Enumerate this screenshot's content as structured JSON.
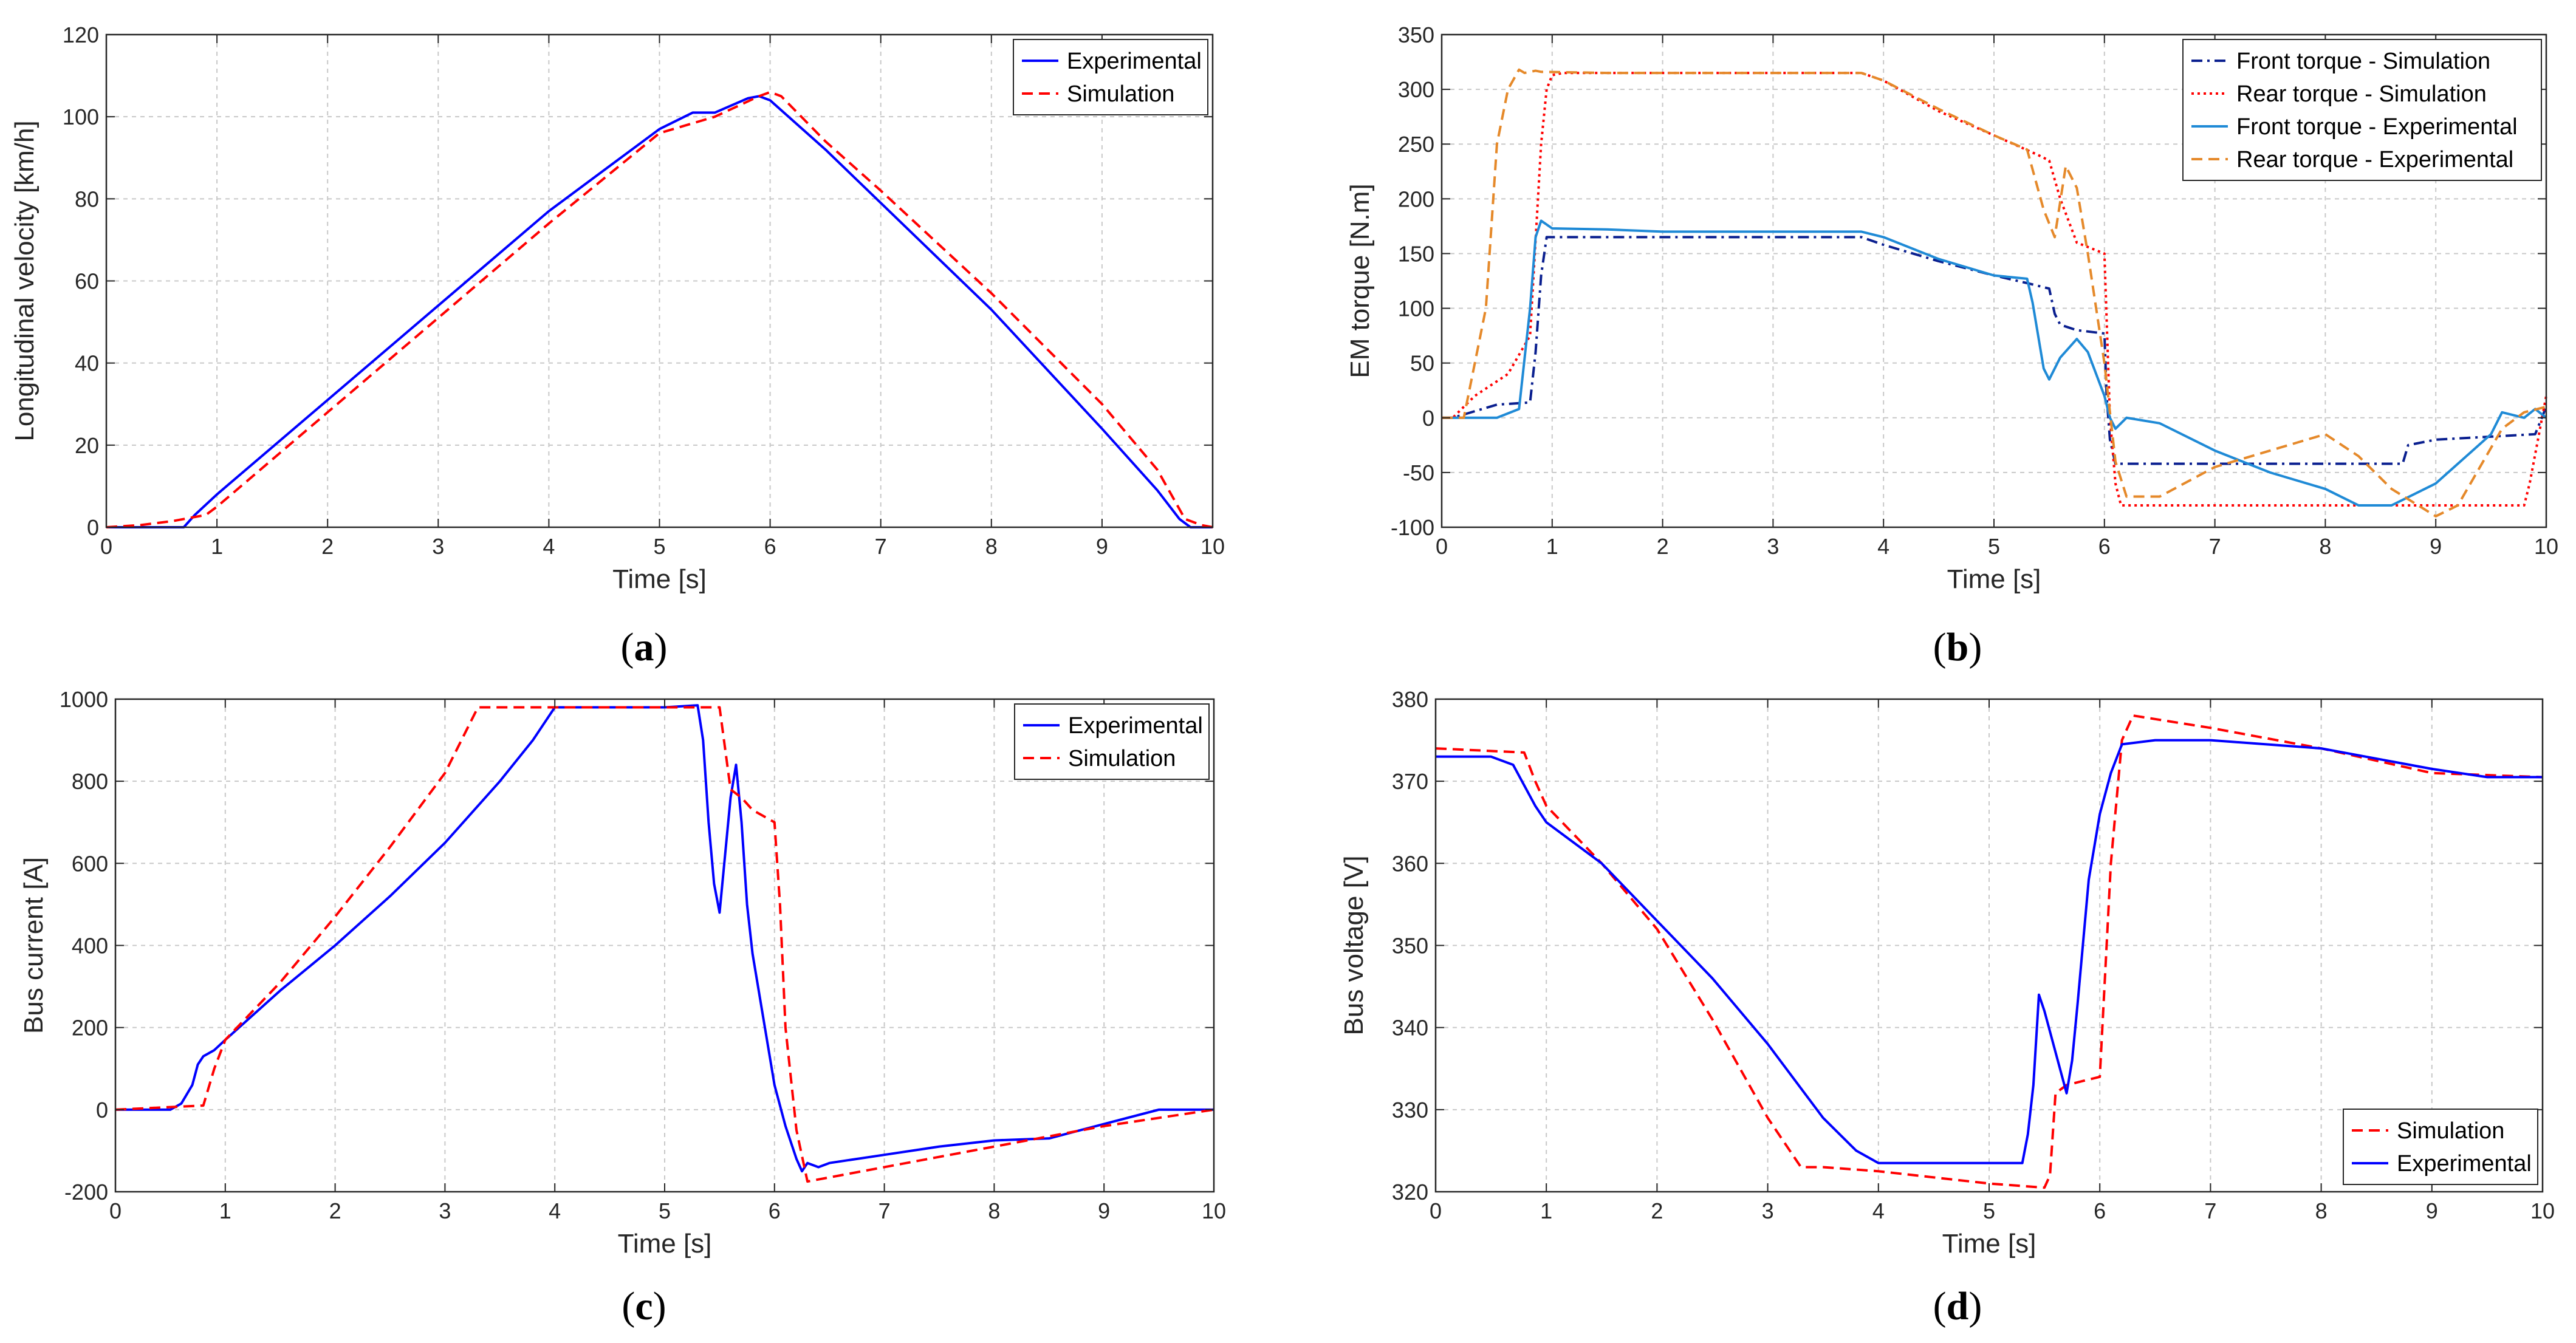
{
  "chart_data": [
    {
      "id": "a",
      "type": "line",
      "caption": "(a)",
      "xlabel": "Time [s]",
      "ylabel": "Longitudinal velocity [km/h]",
      "xlim": [
        0,
        10
      ],
      "ylim": [
        0,
        120
      ],
      "xticks": [
        0,
        1,
        2,
        3,
        4,
        5,
        6,
        7,
        8,
        9,
        10
      ],
      "yticks": [
        0,
        20,
        40,
        60,
        80,
        100,
        120
      ],
      "grid": true,
      "legend_position": "top-right",
      "series": [
        {
          "name": "Experimental",
          "color": "#0000ff",
          "style": "solid",
          "x": [
            0,
            0.7,
            0.75,
            0.8,
            1,
            2,
            3,
            4,
            5,
            5.3,
            5.5,
            5.8,
            5.9,
            6.0,
            6.5,
            7,
            8,
            9,
            9.5,
            9.7,
            9.8,
            10
          ],
          "y": [
            0,
            0,
            1.5,
            3,
            8,
            31,
            54,
            77,
            97,
            101,
            101,
            104.5,
            105,
            104,
            92,
            79,
            53,
            24,
            9,
            2,
            0,
            0
          ]
        },
        {
          "name": "Simulation",
          "color": "#ff0000",
          "style": "dashed",
          "x": [
            0,
            0.3,
            0.6,
            0.9,
            1,
            2,
            3,
            4,
            5,
            5.5,
            5.9,
            6.0,
            6.1,
            6.5,
            7,
            8,
            9,
            9.5,
            9.75,
            9.9,
            10
          ],
          "y": [
            0,
            0.5,
            1.5,
            3,
            5,
            28,
            51,
            74,
            96,
            100,
            105,
            106,
            105,
            94,
            82,
            57,
            30,
            14,
            2,
            0.5,
            0
          ]
        }
      ]
    },
    {
      "id": "b",
      "type": "line",
      "caption": "(b)",
      "xlabel": "Time [s]",
      "ylabel": "EM torque [N.m]",
      "xlim": [
        0,
        10
      ],
      "ylim": [
        -100,
        350
      ],
      "xticks": [
        0,
        1,
        2,
        3,
        4,
        5,
        6,
        7,
        8,
        9,
        10
      ],
      "yticks": [
        -100,
        -50,
        0,
        50,
        100,
        150,
        200,
        250,
        300,
        350
      ],
      "grid": true,
      "legend_position": "top-right",
      "series": [
        {
          "name": "Front torque - Simulation",
          "color": "#0a1f8f",
          "style": "dashdot",
          "x": [
            0,
            0.1,
            0.5,
            0.8,
            0.85,
            0.9,
            0.95,
            3.8,
            4.0,
            4.5,
            5.0,
            5.3,
            5.5,
            5.55,
            5.6,
            5.75,
            6.0,
            6.02,
            6.05,
            6.1,
            8.7,
            8.75,
            9.0,
            9.9,
            10
          ],
          "y": [
            0,
            0,
            12,
            14,
            60,
            130,
            165,
            165,
            158,
            143,
            130,
            123,
            118,
            95,
            85,
            80,
            77,
            20,
            -20,
            -42,
            -42,
            -25,
            -20,
            -15,
            10
          ]
        },
        {
          "name": "Rear torque - Simulation",
          "color": "#ff0000",
          "style": "dotted",
          "x": [
            0,
            0.1,
            0.3,
            0.6,
            0.8,
            0.9,
            0.95,
            1.0,
            1.1,
            3.8,
            4.0,
            4.5,
            5.0,
            5.4,
            5.5,
            5.6,
            5.75,
            6.0,
            6.05,
            6.1,
            6.15,
            6.2,
            9.8,
            9.85,
            10
          ],
          "y": [
            0,
            0,
            20,
            40,
            75,
            250,
            300,
            313,
            315,
            315,
            308,
            280,
            258,
            240,
            235,
            200,
            160,
            150,
            0,
            -60,
            -80,
            -80,
            -80,
            -60,
            20
          ]
        },
        {
          "name": "Front torque - Experimental",
          "color": "#1f8ad6",
          "style": "solid",
          "x": [
            0,
            0.5,
            0.7,
            0.8,
            0.85,
            0.9,
            1.0,
            1.5,
            2,
            3,
            3.8,
            4.0,
            4.5,
            5.0,
            5.3,
            5.35,
            5.45,
            5.5,
            5.6,
            5.75,
            5.85,
            6.0,
            6.05,
            6.1,
            6.2,
            6.5,
            7.0,
            7.5,
            8.0,
            8.3,
            8.6,
            9.0,
            9.5,
            9.6,
            9.8,
            9.9,
            10
          ],
          "y": [
            0,
            0,
            8,
            100,
            165,
            180,
            173,
            172,
            170,
            170,
            170,
            165,
            145,
            130,
            127,
            105,
            45,
            35,
            55,
            72,
            60,
            20,
            0,
            -10,
            0,
            -5,
            -30,
            -50,
            -65,
            -80,
            -80,
            -60,
            -15,
            5,
            0,
            8,
            0
          ]
        },
        {
          "name": "Rear torque - Experimental",
          "color": "#e5892a",
          "style": "dashed",
          "x": [
            0,
            0.2,
            0.4,
            0.5,
            0.6,
            0.7,
            0.75,
            0.8,
            0.85,
            0.9,
            1.5,
            3.8,
            4.0,
            4.5,
            5.0,
            5.3,
            5.45,
            5.55,
            5.65,
            5.75,
            5.85,
            6.0,
            6.1,
            6.2,
            6.5,
            7.0,
            7.5,
            8.0,
            8.3,
            8.6,
            9.0,
            9.2,
            9.6,
            9.8,
            10
          ],
          "y": [
            0,
            0,
            100,
            250,
            300,
            318,
            315,
            316,
            317,
            316,
            315,
            315,
            308,
            282,
            258,
            245,
            190,
            165,
            230,
            210,
            150,
            50,
            -40,
            -72,
            -72,
            -45,
            -30,
            -15,
            -35,
            -65,
            -90,
            -80,
            -10,
            5,
            10
          ]
        }
      ]
    },
    {
      "id": "c",
      "type": "line",
      "caption": "(c)",
      "xlabel": "Time [s]",
      "ylabel": "Bus current [A]",
      "xlim": [
        0,
        10
      ],
      "ylim": [
        -200,
        1000
      ],
      "xticks": [
        0,
        1,
        2,
        3,
        4,
        5,
        6,
        7,
        8,
        9,
        10
      ],
      "yticks": [
        -200,
        0,
        200,
        400,
        600,
        800,
        1000
      ],
      "grid": true,
      "legend_position": "top-right",
      "series": [
        {
          "name": "Experimental",
          "color": "#0000ff",
          "style": "solid",
          "x": [
            0,
            0.5,
            0.6,
            0.7,
            0.75,
            0.8,
            0.9,
            1.0,
            1.5,
            2,
            2.5,
            3,
            3.5,
            3.8,
            4.0,
            5.0,
            5.3,
            5.35,
            5.4,
            5.45,
            5.5,
            5.55,
            5.6,
            5.65,
            5.7,
            5.75,
            5.8,
            5.9,
            6.0,
            6.1,
            6.2,
            6.25,
            6.3,
            6.4,
            6.5,
            7.0,
            7.5,
            8.0,
            8.5,
            9.0,
            9.5,
            10
          ],
          "y": [
            0,
            0,
            15,
            60,
            110,
            130,
            145,
            170,
            290,
            400,
            520,
            650,
            800,
            900,
            980,
            980,
            985,
            900,
            700,
            550,
            480,
            620,
            760,
            840,
            700,
            500,
            380,
            220,
            60,
            -40,
            -120,
            -150,
            -130,
            -140,
            -130,
            -110,
            -90,
            -75,
            -70,
            -35,
            0,
            0
          ]
        },
        {
          "name": "Simulation",
          "color": "#ff0000",
          "style": "dashed",
          "x": [
            0,
            0.8,
            0.9,
            1.0,
            1.5,
            2,
            2.5,
            3,
            3.3,
            3.4,
            5.5,
            5.6,
            5.7,
            5.8,
            6.0,
            6.05,
            6.1,
            6.2,
            6.3,
            7,
            8,
            9,
            10
          ],
          "y": [
            0,
            10,
            100,
            170,
            310,
            470,
            640,
            820,
            980,
            980,
            980,
            780,
            760,
            730,
            700,
            500,
            200,
            -50,
            -175,
            -140,
            -90,
            -40,
            0
          ]
        }
      ]
    },
    {
      "id": "d",
      "type": "line",
      "caption": "(d)",
      "xlabel": "Time [s]",
      "ylabel": "Bus voltage [V]",
      "xlim": [
        0,
        10
      ],
      "ylim": [
        320,
        380
      ],
      "xticks": [
        0,
        1,
        2,
        3,
        4,
        5,
        6,
        7,
        8,
        9,
        10
      ],
      "yticks": [
        320,
        330,
        340,
        350,
        360,
        370,
        380
      ],
      "grid": true,
      "legend_position": "bottom-right",
      "series": [
        {
          "name": "Simulation",
          "color": "#ff0000",
          "style": "dashed",
          "x": [
            0,
            0.8,
            0.9,
            1.0,
            1.5,
            2,
            2.5,
            3,
            3.3,
            3.5,
            4,
            5,
            5.5,
            5.55,
            5.6,
            5.7,
            6.0,
            6.1,
            6.2,
            6.3,
            7,
            8,
            9,
            10
          ],
          "y": [
            374,
            373.5,
            370,
            367,
            360,
            352,
            341,
            329,
            323,
            323,
            322.5,
            321,
            320.5,
            322,
            332,
            333,
            334,
            360,
            375,
            378,
            376.5,
            374,
            371,
            370.5
          ]
        },
        {
          "name": "Experimental",
          "color": "#0000ff",
          "style": "solid",
          "x": [
            0,
            0.5,
            0.7,
            0.9,
            1.0,
            1.5,
            2,
            2.5,
            3,
            3.5,
            3.8,
            4.0,
            4.1,
            4.5,
            5.0,
            5.3,
            5.35,
            5.4,
            5.45,
            5.5,
            5.6,
            5.7,
            5.75,
            5.8,
            5.9,
            6.0,
            6.1,
            6.2,
            6.5,
            7,
            8,
            9,
            9.5,
            10
          ],
          "y": [
            373,
            373,
            372,
            367,
            365,
            360,
            353,
            346,
            338,
            329,
            325,
            323.5,
            323.5,
            323.5,
            323.5,
            323.5,
            327,
            333,
            344,
            342,
            337,
            332,
            336,
            343,
            358,
            366,
            371,
            374.5,
            375,
            375,
            374,
            371.5,
            370.5,
            370.5
          ]
        }
      ]
    }
  ]
}
